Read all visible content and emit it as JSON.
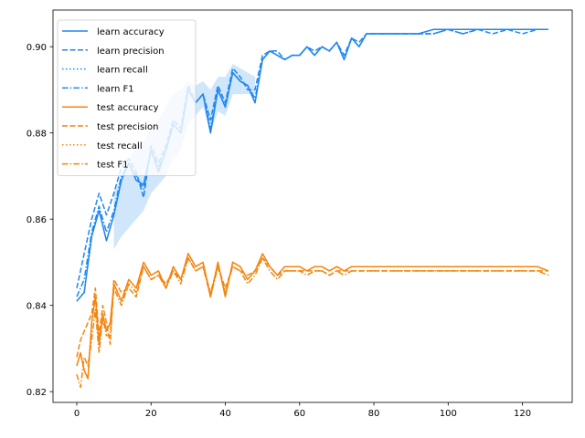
{
  "chart_data": {
    "type": "line",
    "title": "",
    "xlabel": "",
    "ylabel": "",
    "xlim": [
      -6.4,
      133.4
    ],
    "ylim": [
      0.8175,
      0.9085
    ],
    "xticks": [
      "0",
      "20",
      "40",
      "60",
      "80",
      "100",
      "120"
    ],
    "yticks": [
      "0.82",
      "0.84",
      "0.86",
      "0.88",
      "0.90"
    ],
    "xtick_values": [
      0,
      20,
      40,
      60,
      80,
      100,
      120
    ],
    "ytick_values": [
      0.82,
      0.84,
      0.86,
      0.88,
      0.9
    ],
    "legend_position": "top-left",
    "colors": {
      "learn": "#1f87f0",
      "test": "#f5840c",
      "learn_light": "#cfe6fb"
    },
    "series": [
      {
        "name": "learn accuracy",
        "group": "learn",
        "dash": "solid",
        "x": [
          0,
          2,
          4,
          6,
          8,
          10,
          12,
          14,
          16,
          18,
          20,
          22,
          24,
          26,
          28,
          30,
          32,
          34,
          36,
          38,
          40,
          42,
          44,
          46,
          48,
          50,
          52,
          54,
          56,
          58,
          60,
          62,
          64,
          66,
          68,
          70,
          72,
          74,
          76,
          78,
          80,
          84,
          88,
          92,
          96,
          100,
          104,
          108,
          112,
          116,
          120,
          124,
          127
        ],
        "y": [
          0.841,
          0.843,
          0.856,
          0.862,
          0.855,
          0.861,
          0.869,
          0.873,
          0.869,
          0.868,
          0.876,
          0.871,
          0.876,
          0.882,
          0.88,
          0.89,
          0.887,
          0.889,
          0.88,
          0.89,
          0.886,
          0.894,
          0.892,
          0.891,
          0.887,
          0.897,
          0.899,
          0.898,
          0.897,
          0.898,
          0.898,
          0.9,
          0.898,
          0.9,
          0.899,
          0.901,
          0.897,
          0.902,
          0.9,
          0.903,
          0.903,
          0.903,
          0.903,
          0.903,
          0.904,
          0.904,
          0.904,
          0.904,
          0.904,
          0.904,
          0.904,
          0.904,
          0.904
        ]
      },
      {
        "name": "learn precision",
        "group": "learn",
        "dash": "dashed",
        "x": [
          0,
          2,
          4,
          6,
          8,
          10,
          12,
          14,
          16,
          18,
          20,
          22,
          24,
          26,
          28,
          30,
          32,
          34,
          36,
          38,
          40,
          42,
          44,
          46,
          48,
          50,
          52,
          54,
          56,
          58,
          60,
          62,
          64,
          66,
          68,
          70,
          72,
          74,
          76,
          78,
          80,
          84,
          88,
          92,
          96,
          100,
          104,
          108,
          112,
          116,
          120,
          124,
          127
        ],
        "y": [
          0.844,
          0.852,
          0.86,
          0.866,
          0.861,
          0.866,
          0.872,
          0.874,
          0.871,
          0.865,
          0.877,
          0.873,
          0.877,
          0.883,
          0.881,
          0.891,
          0.887,
          0.889,
          0.883,
          0.891,
          0.887,
          0.895,
          0.893,
          0.89,
          0.89,
          0.898,
          0.899,
          0.899,
          0.897,
          0.898,
          0.898,
          0.9,
          0.899,
          0.9,
          0.899,
          0.901,
          0.898,
          0.902,
          0.901,
          0.903,
          0.903,
          0.903,
          0.903,
          0.903,
          0.903,
          0.904,
          0.903,
          0.904,
          0.903,
          0.904,
          0.903,
          0.904,
          0.904
        ]
      },
      {
        "name": "learn recall",
        "group": "learn",
        "dash": "dotted",
        "x": [
          0,
          2,
          4,
          6,
          8,
          10,
          12,
          14,
          16,
          18,
          20,
          22,
          24,
          26,
          28,
          30,
          32,
          34,
          36,
          38,
          40,
          42,
          44,
          46,
          48,
          50,
          52,
          54,
          56,
          58,
          60,
          62,
          64,
          66,
          68,
          70,
          72,
          74,
          76,
          78,
          80,
          84,
          88,
          92,
          96,
          100,
          104,
          108,
          112,
          116,
          120,
          124,
          127
        ],
        "y": [
          0.841,
          0.843,
          0.856,
          0.862,
          0.855,
          0.861,
          0.869,
          0.873,
          0.869,
          0.868,
          0.876,
          0.871,
          0.876,
          0.882,
          0.88,
          0.89,
          0.887,
          0.889,
          0.88,
          0.89,
          0.886,
          0.894,
          0.892,
          0.891,
          0.887,
          0.897,
          0.899,
          0.898,
          0.897,
          0.898,
          0.898,
          0.9,
          0.898,
          0.9,
          0.899,
          0.901,
          0.897,
          0.902,
          0.9,
          0.903,
          0.903,
          0.903,
          0.903,
          0.903,
          0.904,
          0.904,
          0.904,
          0.904,
          0.904,
          0.904,
          0.904,
          0.904,
          0.904
        ]
      },
      {
        "name": "learn F1",
        "group": "learn",
        "dash": "dashdot",
        "x": [
          0,
          2,
          4,
          6,
          8,
          10,
          12,
          14,
          16,
          18,
          20,
          22,
          24,
          26,
          28,
          30,
          32,
          34,
          36,
          38,
          40,
          42,
          44,
          46,
          48,
          50,
          52,
          54,
          56,
          58,
          60,
          62,
          64,
          66,
          68,
          70,
          72,
          74,
          76,
          78,
          80,
          84,
          88,
          92,
          96,
          100,
          104,
          108,
          112,
          116,
          120,
          124,
          127
        ],
        "y": [
          0.842,
          0.846,
          0.857,
          0.863,
          0.857,
          0.862,
          0.87,
          0.873,
          0.87,
          0.867,
          0.876,
          0.872,
          0.876,
          0.882,
          0.88,
          0.89,
          0.887,
          0.889,
          0.881,
          0.89,
          0.886,
          0.894,
          0.892,
          0.891,
          0.888,
          0.897,
          0.899,
          0.898,
          0.897,
          0.898,
          0.898,
          0.9,
          0.898,
          0.9,
          0.899,
          0.901,
          0.897,
          0.902,
          0.9,
          0.903,
          0.903,
          0.903,
          0.903,
          0.903,
          0.903,
          0.904,
          0.903,
          0.904,
          0.904,
          0.904,
          0.904,
          0.904,
          0.904
        ]
      },
      {
        "name": "test accuracy",
        "group": "test",
        "dash": "solid",
        "x": [
          0,
          1,
          2,
          3,
          4,
          5,
          6,
          7,
          8,
          9,
          10,
          12,
          14,
          16,
          18,
          20,
          22,
          24,
          26,
          28,
          30,
          32,
          34,
          36,
          38,
          40,
          42,
          44,
          46,
          48,
          50,
          52,
          54,
          56,
          58,
          60,
          62,
          64,
          66,
          68,
          70,
          72,
          74,
          76,
          78,
          80,
          84,
          88,
          92,
          96,
          100,
          104,
          108,
          112,
          116,
          120,
          124,
          127
        ],
        "y": [
          0.826,
          0.829,
          0.825,
          0.823,
          0.836,
          0.842,
          0.831,
          0.838,
          0.834,
          0.836,
          0.845,
          0.841,
          0.846,
          0.844,
          0.85,
          0.847,
          0.848,
          0.844,
          0.849,
          0.846,
          0.852,
          0.849,
          0.85,
          0.842,
          0.85,
          0.842,
          0.85,
          0.849,
          0.846,
          0.848,
          0.852,
          0.849,
          0.847,
          0.849,
          0.849,
          0.849,
          0.848,
          0.849,
          0.849,
          0.848,
          0.849,
          0.848,
          0.849,
          0.849,
          0.849,
          0.849,
          0.849,
          0.849,
          0.849,
          0.849,
          0.849,
          0.849,
          0.849,
          0.849,
          0.849,
          0.849,
          0.849,
          0.848
        ]
      },
      {
        "name": "test precision",
        "group": "test",
        "dash": "dashed",
        "x": [
          0,
          1,
          2,
          3,
          4,
          5,
          6,
          7,
          8,
          9,
          10,
          12,
          14,
          16,
          18,
          20,
          22,
          24,
          26,
          28,
          30,
          32,
          34,
          36,
          38,
          40,
          42,
          44,
          46,
          48,
          50,
          52,
          54,
          56,
          58,
          60,
          62,
          64,
          66,
          68,
          70,
          72,
          74,
          76,
          78,
          80,
          84,
          88,
          92,
          96,
          100,
          104,
          108,
          112,
          116,
          120,
          124,
          127
        ],
        "y": [
          0.828,
          0.832,
          0.834,
          0.836,
          0.838,
          0.844,
          0.833,
          0.84,
          0.836,
          0.831,
          0.846,
          0.843,
          0.844,
          0.842,
          0.849,
          0.846,
          0.847,
          0.845,
          0.848,
          0.846,
          0.851,
          0.848,
          0.849,
          0.843,
          0.849,
          0.844,
          0.849,
          0.848,
          0.847,
          0.848,
          0.851,
          0.849,
          0.847,
          0.848,
          0.848,
          0.848,
          0.848,
          0.848,
          0.848,
          0.847,
          0.848,
          0.848,
          0.848,
          0.848,
          0.848,
          0.848,
          0.848,
          0.848,
          0.848,
          0.848,
          0.848,
          0.848,
          0.848,
          0.848,
          0.848,
          0.848,
          0.848,
          0.848
        ]
      },
      {
        "name": "test recall",
        "group": "test",
        "dash": "dotted",
        "x": [
          0,
          1,
          2,
          3,
          4,
          5,
          6,
          7,
          8,
          9,
          10,
          12,
          14,
          16,
          18,
          20,
          22,
          24,
          26,
          28,
          30,
          32,
          34,
          36,
          38,
          40,
          42,
          44,
          46,
          48,
          50,
          52,
          54,
          56,
          58,
          60,
          62,
          64,
          66,
          68,
          70,
          72,
          74,
          76,
          78,
          80,
          84,
          88,
          92,
          96,
          100,
          104,
          108,
          112,
          116,
          120,
          124,
          127
        ],
        "y": [
          0.826,
          0.829,
          0.825,
          0.823,
          0.836,
          0.842,
          0.831,
          0.838,
          0.834,
          0.836,
          0.845,
          0.841,
          0.846,
          0.844,
          0.85,
          0.847,
          0.848,
          0.844,
          0.849,
          0.846,
          0.852,
          0.849,
          0.85,
          0.842,
          0.85,
          0.842,
          0.85,
          0.849,
          0.846,
          0.848,
          0.852,
          0.849,
          0.847,
          0.849,
          0.849,
          0.849,
          0.848,
          0.849,
          0.849,
          0.848,
          0.849,
          0.848,
          0.849,
          0.849,
          0.849,
          0.849,
          0.849,
          0.849,
          0.849,
          0.849,
          0.849,
          0.849,
          0.849,
          0.849,
          0.849,
          0.849,
          0.849,
          0.848
        ]
      },
      {
        "name": "test F1",
        "group": "test",
        "dash": "dashdot",
        "x": [
          0,
          1,
          2,
          3,
          4,
          5,
          6,
          7,
          8,
          9,
          10,
          12,
          14,
          16,
          18,
          20,
          22,
          24,
          26,
          28,
          30,
          32,
          34,
          36,
          38,
          40,
          42,
          44,
          46,
          48,
          50,
          52,
          54,
          56,
          58,
          60,
          62,
          64,
          66,
          68,
          70,
          72,
          74,
          76,
          78,
          80,
          84,
          88,
          92,
          96,
          100,
          104,
          108,
          112,
          116,
          120,
          124,
          127
        ],
        "y": [
          0.824,
          0.821,
          0.828,
          0.826,
          0.832,
          0.839,
          0.829,
          0.837,
          0.833,
          0.833,
          0.844,
          0.84,
          0.845,
          0.843,
          0.849,
          0.846,
          0.847,
          0.844,
          0.848,
          0.845,
          0.851,
          0.848,
          0.849,
          0.842,
          0.849,
          0.843,
          0.849,
          0.848,
          0.845,
          0.847,
          0.851,
          0.848,
          0.846,
          0.848,
          0.848,
          0.848,
          0.847,
          0.848,
          0.848,
          0.847,
          0.848,
          0.847,
          0.848,
          0.848,
          0.848,
          0.848,
          0.848,
          0.848,
          0.848,
          0.848,
          0.848,
          0.848,
          0.848,
          0.848,
          0.848,
          0.848,
          0.848,
          0.847
        ]
      }
    ],
    "band": {
      "group": "learn",
      "x": [
        10,
        12,
        14,
        16,
        18,
        20,
        22,
        24,
        26,
        28,
        30,
        32,
        34,
        36,
        38,
        40,
        42,
        44,
        46,
        48
      ],
      "low": [
        0.853,
        0.856,
        0.858,
        0.86,
        0.862,
        0.866,
        0.868,
        0.87,
        0.874,
        0.876,
        0.882,
        0.884,
        0.886,
        0.88,
        0.885,
        0.884,
        0.889,
        0.889,
        0.889,
        0.889
      ],
      "high": [
        0.866,
        0.87,
        0.874,
        0.877,
        0.878,
        0.881,
        0.883,
        0.886,
        0.889,
        0.89,
        0.892,
        0.891,
        0.892,
        0.89,
        0.893,
        0.893,
        0.896,
        0.895,
        0.894,
        0.893
      ]
    }
  }
}
